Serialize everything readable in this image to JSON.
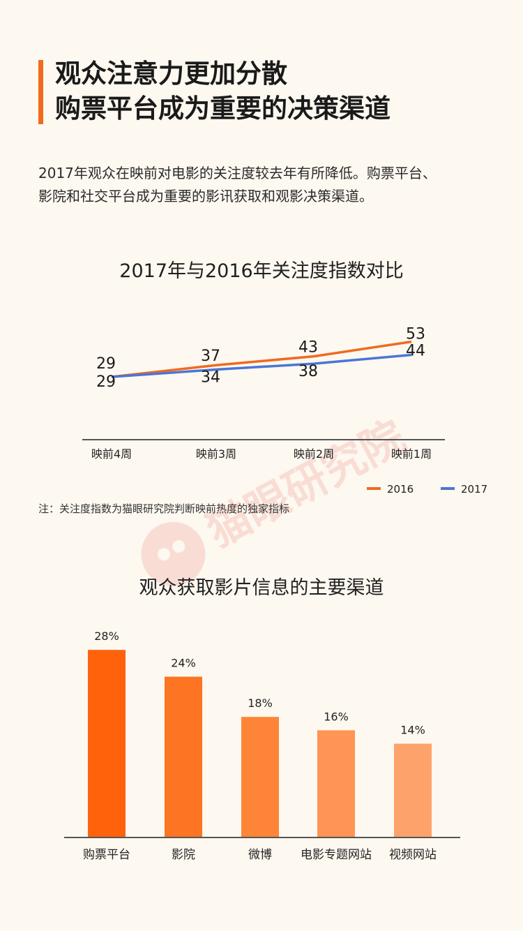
{
  "header": {
    "title_line1": "观众注意力更加分散",
    "title_line2": "购票平台成为重要的决策渠道"
  },
  "intro": {
    "line1": "2017年观众在映前对电影的关注度较去年有所降低。购票平台、",
    "line2": "影院和社交平台成为重要的影讯获取和观影决策渠道。"
  },
  "watermark": {
    "text": "猫眼研究院"
  },
  "note": "注：关注度指数为猫眼研究院判断映前热度的独家指标",
  "colors": {
    "accent": "#f26a1b",
    "line_2016": "#ef6a22",
    "line_2017": "#4a76d4",
    "bars": [
      "#ff620b",
      "#fd7422",
      "#fe8538",
      "#fe9554",
      "#fea26b"
    ]
  },
  "chart_data": [
    {
      "type": "line",
      "title": "2017年与2016年关注度指数对比",
      "categories": [
        "映前4周",
        "映前3周",
        "映前2周",
        "映前1周"
      ],
      "series": [
        {
          "name": "2016",
          "values": [
            29,
            37,
            43,
            53
          ]
        },
        {
          "name": "2017",
          "values": [
            29,
            34,
            38,
            44
          ]
        }
      ],
      "legend": "bottom-right",
      "grid": false
    },
    {
      "type": "bar",
      "title": "观众获取影片信息的主要渠道",
      "categories": [
        "购票平台",
        "影院",
        "微博",
        "电影专题网站",
        "视频网站"
      ],
      "values": [
        28,
        24,
        18,
        16,
        14
      ],
      "value_labels": [
        "28%",
        "24%",
        "18%",
        "16%",
        "14%"
      ],
      "unit": "%",
      "grid": false
    }
  ]
}
